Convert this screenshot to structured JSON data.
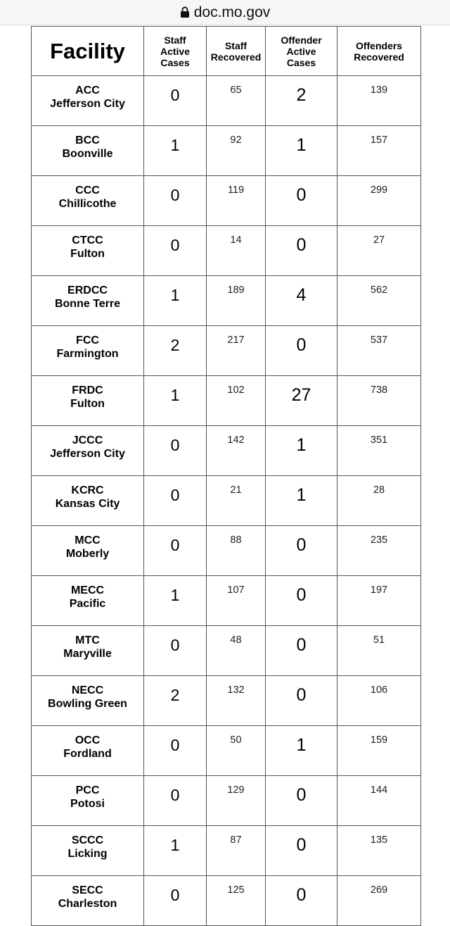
{
  "browser": {
    "url": "doc.mo.gov",
    "lock_icon": "lock-icon"
  },
  "table": {
    "headers": [
      "Facility",
      "Staff Active Cases",
      "Staff Recovered",
      "Offender Active Cases",
      "Offenders Recovered"
    ],
    "header_lines": [
      [
        "Facility"
      ],
      [
        "Staff",
        "Active",
        "Cases"
      ],
      [
        "Staff",
        "Recovered"
      ],
      [
        "Offender",
        "Active",
        "Cases"
      ],
      [
        "Offenders",
        "Recovered"
      ]
    ],
    "rows": [
      {
        "code": "ACC",
        "city": "Jefferson City",
        "staff_active": "0",
        "staff_recovered": "65",
        "offender_active": "2",
        "offenders_recovered": "139"
      },
      {
        "code": "BCC",
        "city": "Boonville",
        "staff_active": "1",
        "staff_recovered": "92",
        "offender_active": "1",
        "offenders_recovered": "157"
      },
      {
        "code": "CCC",
        "city": "Chillicothe",
        "staff_active": "0",
        "staff_recovered": "119",
        "offender_active": "0",
        "offenders_recovered": "299"
      },
      {
        "code": "CTCC",
        "city": "Fulton",
        "staff_active": "0",
        "staff_recovered": "14",
        "offender_active": "0",
        "offenders_recovered": "27"
      },
      {
        "code": "ERDCC",
        "city": "Bonne Terre",
        "staff_active": "1",
        "staff_recovered": "189",
        "offender_active": "4",
        "offenders_recovered": "562"
      },
      {
        "code": "FCC",
        "city": "Farmington",
        "staff_active": "2",
        "staff_recovered": "217",
        "offender_active": "0",
        "offenders_recovered": "537"
      },
      {
        "code": "FRDC",
        "city": "Fulton",
        "staff_active": "1",
        "staff_recovered": "102",
        "offender_active": "27",
        "offenders_recovered": "738"
      },
      {
        "code": "JCCC",
        "city": "Jefferson City",
        "staff_active": "0",
        "staff_recovered": "142",
        "offender_active": "1",
        "offenders_recovered": "351"
      },
      {
        "code": "KCRC",
        "city": "Kansas City",
        "staff_active": "0",
        "staff_recovered": "21",
        "offender_active": "1",
        "offenders_recovered": "28"
      },
      {
        "code": "MCC",
        "city": "Moberly",
        "staff_active": "0",
        "staff_recovered": "88",
        "offender_active": "0",
        "offenders_recovered": "235"
      },
      {
        "code": "MECC",
        "city": "Pacific",
        "staff_active": "1",
        "staff_recovered": "107",
        "offender_active": "0",
        "offenders_recovered": "197"
      },
      {
        "code": "MTC",
        "city": "Maryville",
        "staff_active": "0",
        "staff_recovered": "48",
        "offender_active": "0",
        "offenders_recovered": "51"
      },
      {
        "code": "NECC",
        "city": "Bowling Green",
        "staff_active": "2",
        "staff_recovered": "132",
        "offender_active": "0",
        "offenders_recovered": "106"
      },
      {
        "code": "OCC",
        "city": "Fordland",
        "staff_active": "0",
        "staff_recovered": "50",
        "offender_active": "1",
        "offenders_recovered": "159"
      },
      {
        "code": "PCC",
        "city": "Potosi",
        "staff_active": "0",
        "staff_recovered": "129",
        "offender_active": "0",
        "offenders_recovered": "144"
      },
      {
        "code": "SCCC",
        "city": "Licking",
        "staff_active": "1",
        "staff_recovered": "87",
        "offender_active": "0",
        "offenders_recovered": "135"
      },
      {
        "code": "SECC",
        "city": "Charleston",
        "staff_active": "0",
        "staff_recovered": "125",
        "offender_active": "0",
        "offenders_recovered": "269"
      }
    ]
  }
}
